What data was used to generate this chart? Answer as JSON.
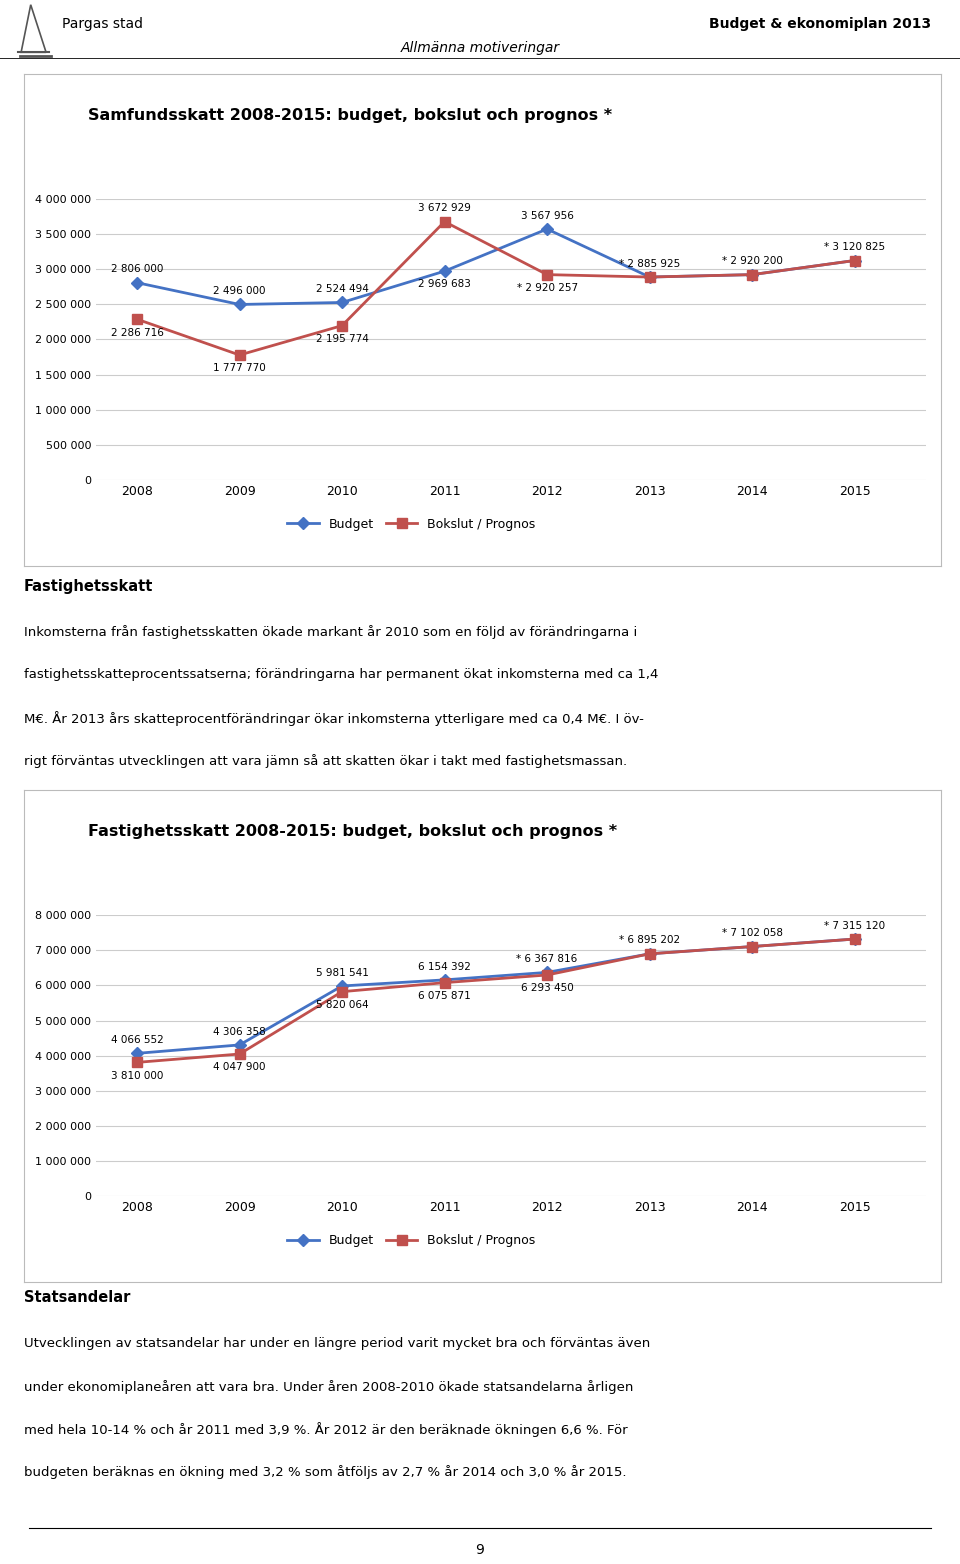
{
  "page_title_left": "Pargas stad",
  "page_title_right": "Budget & ekonomiplan 2013",
  "page_subtitle": "Allmänna motiveringar",
  "chart1_title": "Samfundsskatt 2008-2015: budget, bokslut och prognos *",
  "chart1_years": [
    2008,
    2009,
    2010,
    2011,
    2012,
    2013,
    2014,
    2015
  ],
  "chart1_budget": [
    2806000,
    2496000,
    2524494,
    2969683,
    3567956,
    2885925,
    2920200,
    3120825
  ],
  "chart1_bokslut": [
    2286716,
    1777770,
    2195774,
    3672929,
    2920257,
    2885925,
    2920200,
    3120825
  ],
  "chart1_budget_label": "Budget",
  "chart1_bokslut_label": "Bokslut / Prognos",
  "chart1_budget_color": "#4472C4",
  "chart1_bokslut_color": "#C0504D",
  "chart1_ylim": [
    0,
    4000000
  ],
  "chart1_yticks": [
    0,
    500000,
    1000000,
    1500000,
    2000000,
    2500000,
    3000000,
    3500000,
    4000000
  ],
  "chart1_data_labels_budget": [
    "2 806 000",
    "2 496 000",
    "2 524 494",
    "2 969 683",
    "3 567 956",
    "* 2 885 925",
    "* 2 920 200",
    "* 3 120 825"
  ],
  "chart1_data_labels_bokslut": [
    "2 286 716",
    "1 777 770",
    "2 195 774",
    "3 672 929",
    "* 2 920 257",
    "* 2 885 925",
    "* 2 920 200",
    "* 3 120 825"
  ],
  "chart1_label_budget_above": [
    true,
    true,
    true,
    false,
    true,
    true,
    true,
    true
  ],
  "chart1_label_bokslut_above": [
    false,
    false,
    false,
    true,
    false,
    false,
    false,
    false
  ],
  "text1_title": "Fastighetsskatt",
  "text1_lines": [
    "Inkomsterna från fastighetsskatten ökade markant år 2010 som en följd av förändringarna i",
    "fastighetsskatteprocentssatserna; förändringarna har permanent ökat inkomsterna med ca 1,4",
    "M€. År 2013 års skatteprocentförändringar ökar inkomsterna ytterligare med ca 0,4 M€. I öv-",
    "rigt förväntas utvecklingen att vara jämn så att skatten ökar i takt med fastighetsmassan."
  ],
  "chart2_title": "Fastighetsskatt 2008-2015: budget, bokslut och prognos *",
  "chart2_years": [
    2008,
    2009,
    2010,
    2011,
    2012,
    2013,
    2014,
    2015
  ],
  "chart2_budget": [
    4066552,
    4306358,
    5981541,
    6154392,
    6367816,
    6895202,
    7102058,
    7315120
  ],
  "chart2_bokslut": [
    3810000,
    4047900,
    5820064,
    6075871,
    6293450,
    6895202,
    7102058,
    7315120
  ],
  "chart2_budget_color": "#4472C4",
  "chart2_bokslut_color": "#C0504D",
  "chart2_ylim": [
    0,
    8000000
  ],
  "chart2_yticks": [
    0,
    1000000,
    2000000,
    3000000,
    4000000,
    5000000,
    6000000,
    7000000,
    8000000
  ],
  "chart2_data_labels_budget": [
    "4 066 552",
    "4 306 358",
    "5 981 541",
    "6 154 392",
    "* 6 367 816",
    "* 6 895 202",
    "* 7 102 058",
    "* 7 315 120"
  ],
  "chart2_data_labels_bokslut": [
    "3 810 000",
    "4 047 900",
    "5 820 064",
    "6 075 871",
    "6 293 450",
    "* 6 895 202",
    "* 7 102 058",
    "* 7 315 120"
  ],
  "chart2_label_budget_above": [
    true,
    true,
    true,
    true,
    true,
    true,
    true,
    true
  ],
  "chart2_label_bokslut_above": [
    false,
    false,
    false,
    false,
    false,
    false,
    false,
    false
  ],
  "text2_title": "Statsandelar",
  "text2_lines": [
    "Utvecklingen av statsandelar har under en längre period varit mycket bra och förväntas även",
    "under ekonomiplaneåren att vara bra. Under åren 2008-2010 ökade statsandelarna årligen",
    "med hela 10-14 % och år 2011 med 3,9 %. År 2012 är den beräknade ökningen 6,6 %. För",
    "budgeten beräknas en ökning med 3,2 % som åtföljs av 2,7 % år 2014 och 3,0 % år 2015."
  ],
  "footer_page": "9"
}
